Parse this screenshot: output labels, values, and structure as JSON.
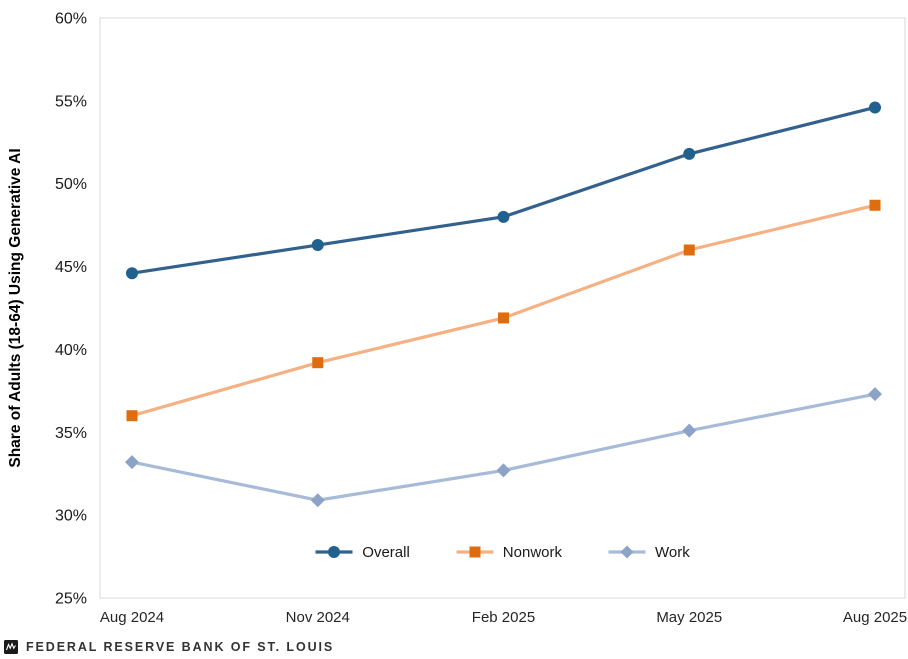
{
  "chart_data": {
    "type": "line",
    "ylabel": "Share of Adults (18-64) Using Generative AI",
    "x_categories": [
      "Aug 2024",
      "Nov 2024",
      "Feb 2025",
      "May 2025",
      "Aug 2025"
    ],
    "ylim": [
      25,
      60
    ],
    "ytick_values": [
      25,
      30,
      35,
      40,
      45,
      50,
      55,
      60
    ],
    "ytick_labels": [
      "25%",
      "30%",
      "35%",
      "40%",
      "45%",
      "50%",
      "55%",
      "60%"
    ],
    "grid": false,
    "frame_color": "#D9D9D9",
    "legend_position": "bottom-center-inside",
    "series": [
      {
        "name": "Overall",
        "marker": "circle",
        "color": "#31618C",
        "marker_color": "#20618E",
        "values": [
          44.6,
          46.3,
          48.0,
          51.8,
          54.6
        ]
      },
      {
        "name": "Nonwork",
        "marker": "square",
        "color": "#F5B183",
        "marker_color": "#DE6D0F",
        "values": [
          36.0,
          39.2,
          41.9,
          46.0,
          48.7
        ]
      },
      {
        "name": "Work",
        "marker": "diamond",
        "color": "#A7BAD7",
        "marker_color": "#8BA3C7",
        "values": [
          33.2,
          30.9,
          32.7,
          35.1,
          37.3
        ]
      }
    ]
  },
  "footer": {
    "brand": "FEDERAL RESERVE BANK OF ST. LOUIS"
  }
}
